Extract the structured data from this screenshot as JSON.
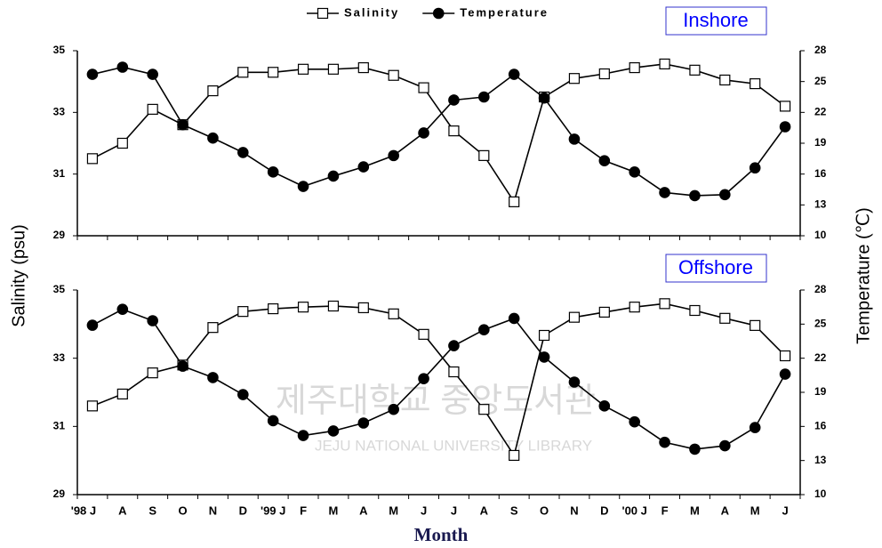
{
  "chart_data": [
    {
      "type": "line",
      "title": "Inshore",
      "ylabel": "Salinity (psu)",
      "y2label": "Temperature (℃)",
      "ylim": [
        29,
        35
      ],
      "yticks": [
        29,
        31,
        33,
        35
      ],
      "y2lim": [
        10,
        28
      ],
      "y2ticks": [
        10,
        13,
        16,
        19,
        22,
        25,
        28
      ],
      "series": [
        {
          "name": "Salinity",
          "color": "#000000",
          "marker": "square",
          "marker_fill": "#ffffff",
          "values": [
            31.5,
            32.0,
            33.1,
            32.6,
            33.7,
            34.3,
            34.3,
            34.4,
            34.4,
            34.45,
            34.2,
            33.8,
            32.4,
            31.6,
            30.1,
            33.5,
            34.1,
            34.25,
            34.45,
            34.57,
            34.37,
            34.05,
            33.93,
            33.2
          ]
        },
        {
          "name": "Temperature",
          "color": "#000000",
          "marker": "circle",
          "marker_fill": "#000000",
          "axis": "y2",
          "values": [
            25.7,
            26.4,
            25.7,
            20.8,
            19.5,
            18.1,
            16.2,
            14.8,
            15.8,
            16.7,
            17.8,
            20.0,
            23.2,
            23.5,
            25.7,
            23.4,
            19.4,
            17.3,
            16.2,
            14.2,
            13.9,
            14.0,
            16.6,
            20.6
          ]
        }
      ]
    },
    {
      "type": "line",
      "title": "Offshore",
      "xlabel": "Month",
      "categories": [
        "'98 J",
        "A",
        "S",
        "O",
        "N",
        "D",
        "'99 J",
        "F",
        "M",
        "A",
        "M",
        "J",
        "J",
        "A",
        "S",
        "O",
        "N",
        "D",
        "'00 J",
        "F",
        "M",
        "A",
        "M",
        "J"
      ],
      "ylim": [
        29,
        35
      ],
      "yticks": [
        29,
        31,
        33,
        35
      ],
      "y2lim": [
        10,
        28
      ],
      "y2ticks": [
        10,
        13,
        16,
        19,
        22,
        25,
        28
      ],
      "series": [
        {
          "color": "#000000",
          "marker": "square",
          "marker_fill": "#ffffff",
          "values": [
            31.6,
            31.95,
            32.57,
            32.8,
            33.9,
            34.37,
            34.45,
            34.5,
            34.53,
            34.48,
            34.3,
            33.7,
            32.6,
            31.5,
            30.15,
            33.67,
            34.2,
            34.35,
            34.5,
            34.6,
            34.4,
            34.17,
            33.96,
            33.07
          ]
        },
        {
          "color": "#000000",
          "marker": "circle",
          "marker_fill": "#000000",
          "axis": "y2",
          "values": [
            24.9,
            26.3,
            25.3,
            21.3,
            20.3,
            18.8,
            16.5,
            15.2,
            15.6,
            16.3,
            17.5,
            20.2,
            23.1,
            24.5,
            25.5,
            22.1,
            19.9,
            17.8,
            16.4,
            14.6,
            14.0,
            14.3,
            15.9,
            20.6
          ]
        }
      ]
    }
  ],
  "watermark": {
    "korean": "제주대학교 중앙도서관",
    "english": "JEJU NATIONAL UNIVERSITY LIBRARY"
  }
}
